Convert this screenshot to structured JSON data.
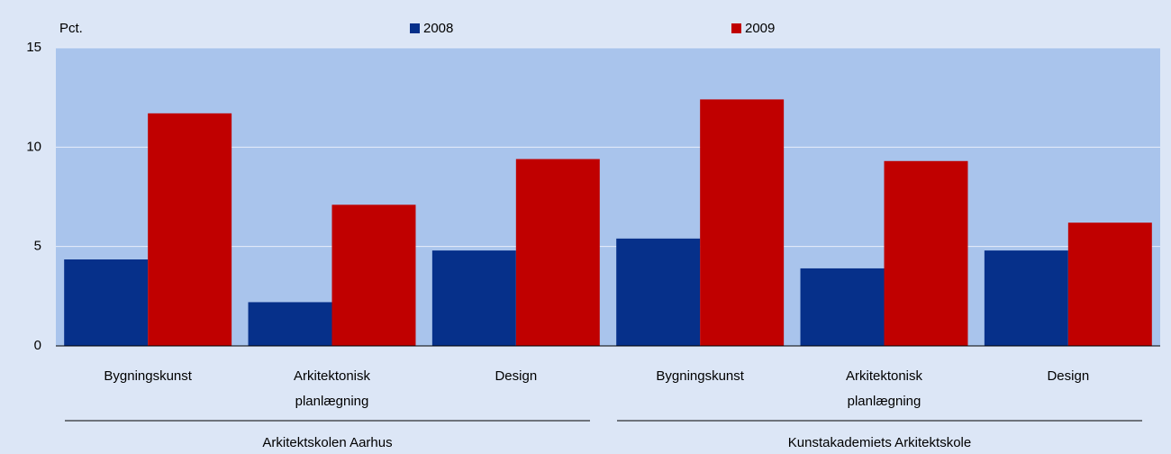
{
  "chart_data": {
    "type": "bar",
    "y_label": "Pct.",
    "groups": [
      {
        "name": "Arkitektskolen Aarhus",
        "categories": [
          "Bygningskunst",
          "Arkitektonisk\nplanlægning",
          "Design"
        ]
      },
      {
        "name": "Kunstakademiets Arkitektskole",
        "categories": [
          "Bygningskunst",
          "Arkitektonisk\nplanlægning",
          "Design"
        ]
      }
    ],
    "series": [
      {
        "name": "2008",
        "color": "#06308a",
        "values": [
          4.35,
          2.2,
          4.8,
          5.4,
          3.9,
          4.8
        ]
      },
      {
        "name": "2009",
        "color": "#c00000",
        "values": [
          11.7,
          7.1,
          9.4,
          12.4,
          9.3,
          6.2
        ]
      }
    ],
    "ylim": [
      0,
      15
    ],
    "yticks": [
      0,
      5,
      10,
      15
    ],
    "grid": true
  }
}
